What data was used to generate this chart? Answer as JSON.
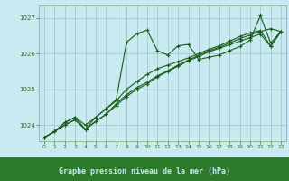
{
  "title": "Graphe pression niveau de la mer (hPa)",
  "bg_color": "#c8eaf0",
  "plot_bg_color": "#c8eaf0",
  "grid_color": "#9dbfca",
  "line_color": "#1a5c1a",
  "xlim": [
    -0.5,
    23.5
  ],
  "ylim": [
    1023.55,
    1027.35
  ],
  "yticks": [
    1024,
    1025,
    1026,
    1027
  ],
  "xticks": [
    0,
    1,
    2,
    3,
    4,
    5,
    6,
    7,
    8,
    9,
    10,
    11,
    12,
    13,
    14,
    15,
    16,
    17,
    18,
    19,
    20,
    21,
    22,
    23
  ],
  "xlabel_bg": "#2d7a2d",
  "xlabel_color": "#c8eaf0",
  "series": [
    [
      1023.65,
      1023.82,
      1024.0,
      1024.15,
      1023.88,
      1024.1,
      1024.3,
      1024.55,
      1024.8,
      1025.0,
      1025.15,
      1025.35,
      1025.5,
      1025.65,
      1025.8,
      1025.92,
      1026.05,
      1026.15,
      1026.25,
      1026.35,
      1026.45,
      1026.55,
      1026.2,
      1026.62
    ],
    [
      1023.65,
      1023.82,
      1024.0,
      1024.15,
      1023.88,
      1024.1,
      1024.3,
      1024.6,
      1024.85,
      1025.05,
      1025.2,
      1025.38,
      1025.52,
      1025.68,
      1025.82,
      1025.95,
      1026.08,
      1026.18,
      1026.3,
      1026.42,
      1026.52,
      1026.62,
      1026.7,
      1026.62
    ],
    [
      1023.65,
      1023.82,
      1024.07,
      1024.22,
      1024.0,
      1024.22,
      1024.45,
      1024.72,
      1026.32,
      1026.56,
      1026.66,
      1026.08,
      1025.96,
      1026.22,
      1026.26,
      1025.84,
      1025.9,
      1025.96,
      1026.08,
      1026.2,
      1026.38,
      1027.06,
      1026.3,
      1026.62
    ],
    [
      1023.65,
      1023.82,
      1024.07,
      1024.22,
      1023.88,
      1024.22,
      1024.45,
      1024.68,
      1025.0,
      1025.22,
      1025.42,
      1025.58,
      1025.68,
      1025.78,
      1025.88,
      1026.0,
      1026.12,
      1026.22,
      1026.35,
      1026.48,
      1026.58,
      1026.65,
      1026.22,
      1026.62
    ]
  ]
}
